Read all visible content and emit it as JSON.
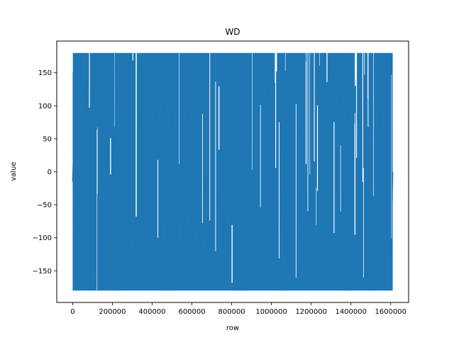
{
  "chart_data": {
    "type": "line",
    "title": "WD",
    "xlabel": "row",
    "ylabel": "value",
    "xlim": [
      -80000,
      1690000
    ],
    "ylim": [
      -198,
      198
    ],
    "xticks": [
      0,
      200000,
      400000,
      600000,
      800000,
      1000000,
      1200000,
      1400000,
      1600000
    ],
    "yticks": [
      -150,
      -100,
      -50,
      0,
      50,
      100,
      150
    ],
    "grid": false,
    "legend": "none",
    "series_color": "#1f77b4",
    "series": [
      {
        "x_range": [
          0,
          1610000
        ],
        "y_range": [
          -180,
          180
        ],
        "x": [
          0,
          20000,
          40000,
          60000,
          80000,
          100000,
          120000,
          140000,
          160000,
          180000,
          200000,
          220000,
          240000,
          260000,
          280000,
          300000,
          320000,
          340000,
          360000,
          380000,
          400000,
          420000,
          440000,
          460000,
          480000,
          500000,
          520000,
          540000,
          560000,
          580000,
          600000,
          620000,
          640000,
          660000,
          680000,
          700000,
          720000,
          740000,
          760000,
          780000,
          800000,
          820000,
          840000,
          860000,
          880000,
          900000,
          920000,
          940000,
          960000,
          980000,
          1000000,
          1020000,
          1040000,
          1060000,
          1080000,
          1100000,
          1120000,
          1140000,
          1160000,
          1180000,
          1200000,
          1220000,
          1240000,
          1260000,
          1280000,
          1300000,
          1320000,
          1340000,
          1360000,
          1380000,
          1400000,
          1420000,
          1440000,
          1460000,
          1480000,
          1500000,
          1520000,
          1540000,
          1560000,
          1580000,
          1600000,
          1610000
        ],
        "y": [
          -15,
          178,
          -179,
          175,
          -178,
          170,
          -177,
          179,
          -176,
          178,
          -180,
          176,
          -179,
          178,
          -175,
          179,
          -178,
          177,
          -179,
          175,
          -178,
          179,
          -177,
          176,
          -180,
          178,
          -179,
          177,
          -178,
          179,
          -176,
          178,
          -179,
          176,
          -178,
          180,
          -177,
          178,
          -179,
          176,
          -178,
          179,
          -180,
          177,
          -178,
          178,
          -176,
          179,
          -179,
          178,
          -177,
          176,
          -178,
          179,
          -180,
          177,
          -179,
          178,
          -176,
          179,
          -178,
          177,
          -179,
          178,
          -177,
          179,
          -178,
          176,
          -179,
          178,
          -180,
          177,
          -178,
          179,
          -176,
          178,
          -179,
          177,
          -178,
          179,
          -177,
          0
        ]
      }
    ]
  }
}
